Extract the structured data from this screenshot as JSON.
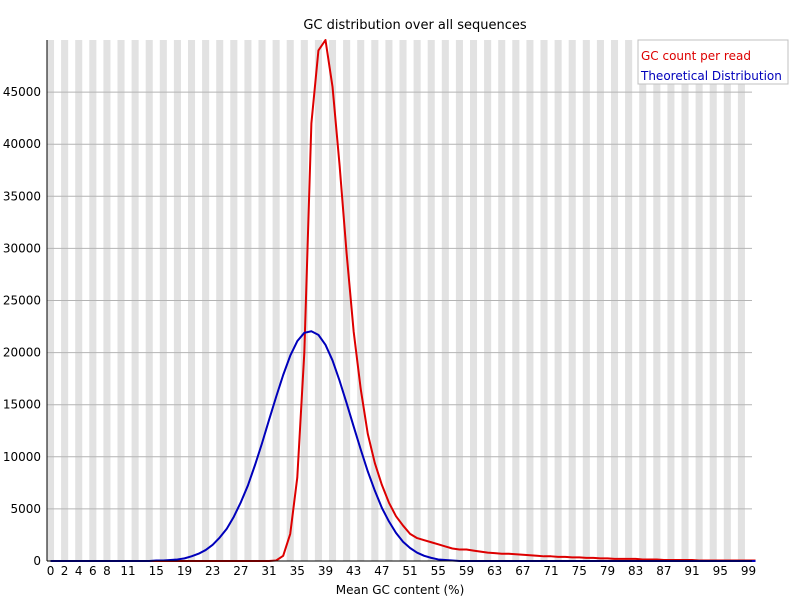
{
  "chart_data": {
    "type": "line",
    "title": "GC distribution over all sequences",
    "xlabel": "Mean GC content (%)",
    "ylabel": "",
    "xlim": [
      0,
      100
    ],
    "ylim": [
      0,
      50000
    ],
    "grid": true,
    "legend_position": "top-right",
    "x_ticks": [
      "0",
      "2",
      "4",
      "6",
      "8",
      "11",
      "15",
      "19",
      "23",
      "27",
      "31",
      "35",
      "39",
      "43",
      "47",
      "51",
      "55",
      "59",
      "63",
      "67",
      "71",
      "75",
      "79",
      "83",
      "87",
      "91",
      "95",
      "99"
    ],
    "y_ticks": [
      0,
      5000,
      10000,
      15000,
      20000,
      25000,
      30000,
      35000,
      40000,
      45000
    ],
    "series": [
      {
        "name": "GC count per read",
        "color": "#dd0000",
        "values": [
          0,
          0,
          0,
          0,
          0,
          0,
          0,
          0,
          0,
          0,
          0,
          0,
          0,
          0,
          0,
          0,
          0,
          0,
          0,
          0,
          0,
          0,
          0,
          0,
          0,
          0,
          0,
          0,
          0,
          0,
          0,
          0,
          50,
          500,
          2600,
          8000,
          20000,
          42000,
          49000,
          50000,
          45500,
          38000,
          29500,
          22000,
          16500,
          12200,
          9400,
          7300,
          5600,
          4300,
          3400,
          2600,
          2200,
          2000,
          1800,
          1600,
          1400,
          1200,
          1100,
          1100,
          1000,
          900,
          800,
          750,
          700,
          700,
          650,
          600,
          550,
          500,
          450,
          450,
          400,
          400,
          350,
          350,
          300,
          300,
          250,
          250,
          200,
          200,
          200,
          200,
          150,
          150,
          150,
          100,
          100,
          100,
          100,
          100,
          50,
          50,
          50,
          50,
          50,
          50,
          50,
          50,
          50
        ]
      },
      {
        "name": "Theoretical Distribution",
        "color": "#0000bb",
        "values": [
          0,
          0,
          0,
          0,
          0,
          0,
          0,
          0,
          0,
          0,
          0,
          0,
          0,
          0,
          0,
          50,
          50,
          100,
          150,
          250,
          450,
          700,
          1050,
          1550,
          2250,
          3100,
          4250,
          5650,
          7250,
          9200,
          11300,
          13550,
          15750,
          17850,
          19700,
          21100,
          21900,
          22050,
          21700,
          20750,
          19250,
          17300,
          15150,
          12900,
          10700,
          8600,
          6750,
          5100,
          3800,
          2700,
          1850,
          1250,
          800,
          500,
          300,
          150,
          100,
          50,
          0,
          0,
          0,
          0,
          0,
          0,
          0,
          0,
          0,
          0,
          0,
          0,
          0,
          0,
          0,
          0,
          0,
          0,
          0,
          0,
          0,
          0,
          0,
          0,
          0,
          0,
          0,
          0,
          0,
          0,
          0,
          0,
          0,
          0,
          0,
          0,
          0,
          0,
          0,
          0,
          0,
          0,
          0
        ]
      }
    ]
  }
}
